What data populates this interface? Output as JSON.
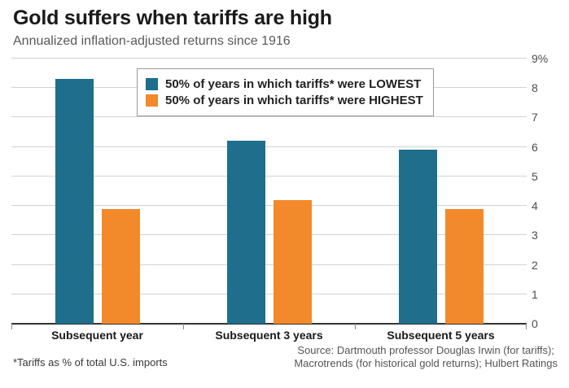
{
  "header": {
    "title": "Gold suffers when tariffs are high",
    "subtitle": "Annualized inflation-adjusted returns since 1916"
  },
  "chart_data": {
    "type": "bar",
    "categories": [
      "Subsequent year",
      "Subsequent 3 years",
      "Subsequent 5 years"
    ],
    "series": [
      {
        "name": "50% of years in which tariffs* were LOWEST",
        "color": "#1e6e8c",
        "values": [
          8.3,
          6.2,
          5.9
        ]
      },
      {
        "name": "50% of years in which tariffs* were HIGHEST",
        "color": "#f2892b",
        "values": [
          3.9,
          4.2,
          3.9
        ]
      }
    ],
    "ylim": [
      0,
      9
    ],
    "ytick_labels": [
      "0",
      "1",
      "2",
      "3",
      "4",
      "5",
      "6",
      "7",
      "8",
      "9%"
    ],
    "grid": true,
    "legend_position": "top-center"
  },
  "footer": {
    "footnote": "*Tariffs as % of total U.S. imports",
    "source_line1": "Source: Dartmouth professor Douglas Irwin (for tariffs);",
    "source_line2": "Macrotrends (for historical gold returns); Hulbert Ratings"
  }
}
